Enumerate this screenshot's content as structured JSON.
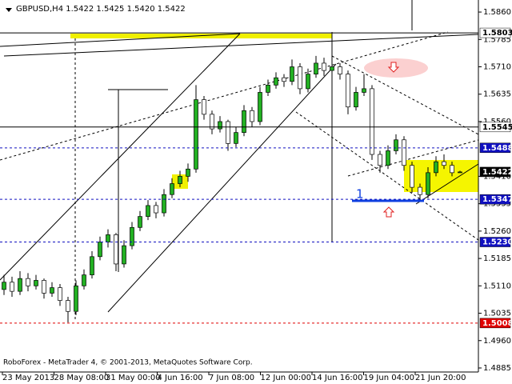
{
  "chart_data": {
    "type": "candlestick",
    "title": "GBPUSD,H4  1.5422 1.5425 1.5420 1.5422",
    "footer": "RoboForex - MetaTrader 4, © 2001-2013, MetaQuotes Software Corp.",
    "annotation": "1",
    "bull_color": "#22b022",
    "bear_color": "#ffffff",
    "wick_color": "#000000",
    "ylim": [
      1.4874,
      1.5893
    ],
    "yticks": [
      {
        "value": 1.586,
        "label": "1.5860"
      },
      {
        "value": 1.5785,
        "label": "1.5785"
      },
      {
        "value": 1.571,
        "label": "1.5710"
      },
      {
        "value": 1.5635,
        "label": "1.5635"
      },
      {
        "value": 1.556,
        "label": "1.5560"
      },
      {
        "value": 1.541,
        "label": "1.5410"
      },
      {
        "value": 1.5335,
        "label": "1.5335"
      },
      {
        "value": 1.526,
        "label": "1.5260"
      },
      {
        "value": 1.5185,
        "label": "1.5185"
      },
      {
        "value": 1.511,
        "label": "1.5110"
      },
      {
        "value": 1.5035,
        "label": "1.5035"
      },
      {
        "value": 1.496,
        "label": "1.4960"
      },
      {
        "value": 1.4885,
        "label": "1.4885"
      }
    ],
    "x_labels": [
      "23 May 2013",
      "28 May 08:00",
      "31 May 00:00",
      "4 Jun 16:00",
      "7 Jun 08:00",
      "12 Jun 00:00",
      "14 Jun 16:00",
      "19 Jun 04:00",
      "21 Jun 20:00"
    ],
    "levels": [
      {
        "value": 1.5803,
        "label": "1.5803",
        "color": "#ffffff",
        "text_color": "#000000",
        "line": "solid"
      },
      {
        "value": 1.5545,
        "label": "1.5545",
        "color": "#ffffff",
        "text_color": "#000000",
        "line": "solid"
      },
      {
        "value": 1.5488,
        "label": "1.5488",
        "color": "#1010c0",
        "text_color": "#ffffff",
        "line": "dashed"
      },
      {
        "value": 1.5422,
        "label": "1.5422",
        "color": "#000000",
        "text_color": "#ffffff",
        "line": "none"
      },
      {
        "value": 1.5347,
        "label": "1.5347",
        "color": "#1010c0",
        "text_color": "#ffffff",
        "line": "dashed"
      },
      {
        "value": 1.523,
        "label": "1.5230",
        "color": "#1010c0",
        "text_color": "#ffffff",
        "line": "dashed"
      },
      {
        "value": 1.5008,
        "label": "1.5008",
        "color": "#e00000",
        "text_color": "#ffffff",
        "line": "dashed"
      }
    ],
    "ohlc": [
      [
        1.51,
        1.514,
        1.5085,
        1.512
      ],
      [
        1.512,
        1.5135,
        1.508,
        1.5095
      ],
      [
        1.5095,
        1.515,
        1.5085,
        1.513
      ],
      [
        1.513,
        1.5145,
        1.5095,
        1.511
      ],
      [
        1.511,
        1.514,
        1.51,
        1.5125
      ],
      [
        1.5125,
        1.513,
        1.5075,
        1.509
      ],
      [
        1.509,
        1.512,
        1.508,
        1.5105
      ],
      [
        1.5105,
        1.5115,
        1.5055,
        1.507
      ],
      [
        1.507,
        1.508,
        1.501,
        1.504
      ],
      [
        1.504,
        1.5125,
        1.503,
        1.511
      ],
      [
        1.511,
        1.5155,
        1.51,
        1.514
      ],
      [
        1.514,
        1.5205,
        1.513,
        1.519
      ],
      [
        1.519,
        1.5245,
        1.518,
        1.523
      ],
      [
        1.523,
        1.5265,
        1.5215,
        1.525
      ],
      [
        1.525,
        1.5255,
        1.515,
        1.517
      ],
      [
        1.517,
        1.5235,
        1.516,
        1.522
      ],
      [
        1.522,
        1.5285,
        1.521,
        1.527
      ],
      [
        1.527,
        1.5315,
        1.526,
        1.53
      ],
      [
        1.53,
        1.5345,
        1.529,
        1.533
      ],
      [
        1.533,
        1.534,
        1.5295,
        1.531
      ],
      [
        1.531,
        1.5375,
        1.53,
        1.536
      ],
      [
        1.536,
        1.5405,
        1.535,
        1.539
      ],
      [
        1.539,
        1.5425,
        1.538,
        1.541
      ],
      [
        1.541,
        1.5445,
        1.5395,
        1.543
      ],
      [
        1.543,
        1.566,
        1.542,
        1.562
      ],
      [
        1.562,
        1.563,
        1.5565,
        1.558
      ],
      [
        1.558,
        1.559,
        1.5525,
        1.554
      ],
      [
        1.554,
        1.5575,
        1.553,
        1.556
      ],
      [
        1.556,
        1.5565,
        1.548,
        1.55
      ],
      [
        1.55,
        1.5545,
        1.549,
        1.553
      ],
      [
        1.553,
        1.5605,
        1.552,
        1.559
      ],
      [
        1.559,
        1.56,
        1.5545,
        1.556
      ],
      [
        1.556,
        1.5655,
        1.555,
        1.564
      ],
      [
        1.564,
        1.5675,
        1.563,
        1.566
      ],
      [
        1.566,
        1.5695,
        1.565,
        1.568
      ],
      [
        1.568,
        1.569,
        1.5655,
        1.567
      ],
      [
        1.567,
        1.573,
        1.566,
        1.571
      ],
      [
        1.571,
        1.572,
        1.5635,
        1.565
      ],
      [
        1.565,
        1.5705,
        1.564,
        1.569
      ],
      [
        1.569,
        1.574,
        1.568,
        1.572
      ],
      [
        1.572,
        1.5735,
        1.5685,
        1.57
      ],
      [
        1.57,
        1.573,
        1.569,
        1.571
      ],
      [
        1.571,
        1.572,
        1.5675,
        1.569
      ],
      [
        1.569,
        1.57,
        1.558,
        1.56
      ],
      [
        1.56,
        1.5655,
        1.559,
        1.564
      ],
      [
        1.564,
        1.569,
        1.563,
        1.565
      ],
      [
        1.565,
        1.566,
        1.5455,
        1.547
      ],
      [
        1.547,
        1.548,
        1.542,
        1.544
      ],
      [
        1.544,
        1.5495,
        1.543,
        1.548
      ],
      [
        1.548,
        1.5525,
        1.547,
        1.551
      ],
      [
        1.551,
        1.552,
        1.5425,
        1.544
      ],
      [
        1.544,
        1.545,
        1.5365,
        1.538
      ],
      [
        1.538,
        1.539,
        1.5345,
        1.536
      ],
      [
        1.536,
        1.5435,
        1.535,
        1.542
      ],
      [
        1.542,
        1.5465,
        1.541,
        1.545
      ],
      [
        1.545,
        1.547,
        1.543,
        1.544
      ],
      [
        1.544,
        1.545,
        1.541,
        1.542
      ],
      [
        1.5422,
        1.5425,
        1.542,
        1.5422
      ]
    ]
  }
}
